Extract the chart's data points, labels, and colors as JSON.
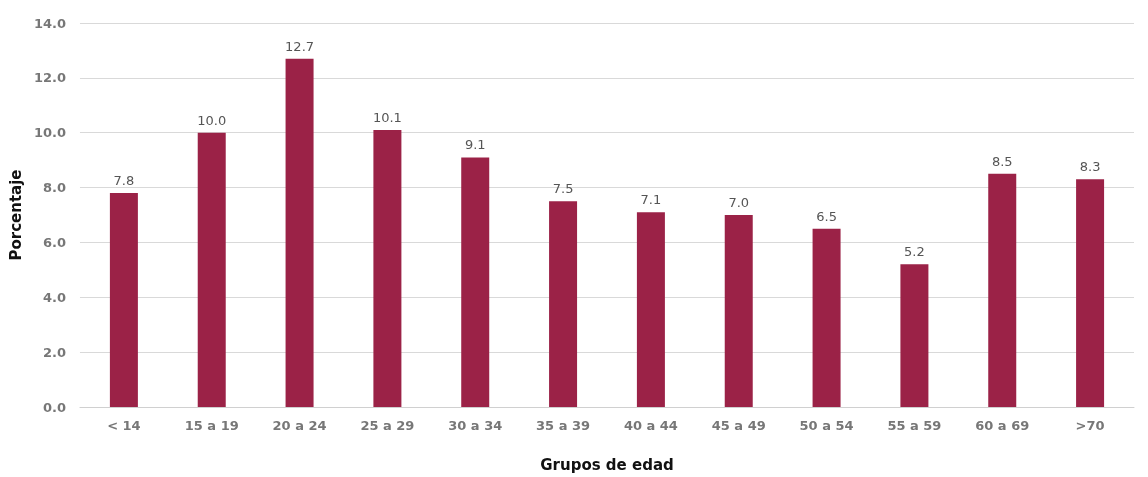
{
  "chart_data": {
    "type": "bar",
    "xlabel": "Grupos de edad",
    "ylabel": "Porcentaje",
    "categories": [
      "< 14",
      "15 a 19",
      "20 a 24",
      "25 a 29",
      "30 a 34",
      "35 a 39",
      "40 a 44",
      "45 a 49",
      "50 a 54",
      "55 a 59",
      "60 a 69",
      ">70"
    ],
    "values": [
      7.8,
      10.0,
      12.7,
      10.1,
      9.1,
      7.5,
      7.1,
      7.0,
      6.5,
      5.2,
      8.5,
      8.3
    ],
    "value_labels": [
      "7.8",
      "10.0",
      "12.7",
      "10.1",
      "9.1",
      "7.5",
      "7.1",
      "7.0",
      "6.5",
      "5.2",
      "8.5",
      "8.3"
    ],
    "color": "#9b2247",
    "ylim": [
      0,
      14
    ],
    "yticks": [
      {
        "value": 0,
        "label": "0.0"
      },
      {
        "value": 2,
        "label": "2.0"
      },
      {
        "value": 4,
        "label": "4.0"
      },
      {
        "value": 6,
        "label": "6.0"
      },
      {
        "value": 8,
        "label": "8.0"
      },
      {
        "value": 10,
        "label": "10.0"
      },
      {
        "value": 12,
        "label": "12.0"
      },
      {
        "value": 14,
        "label": "14.0"
      }
    ],
    "grid": "y"
  }
}
